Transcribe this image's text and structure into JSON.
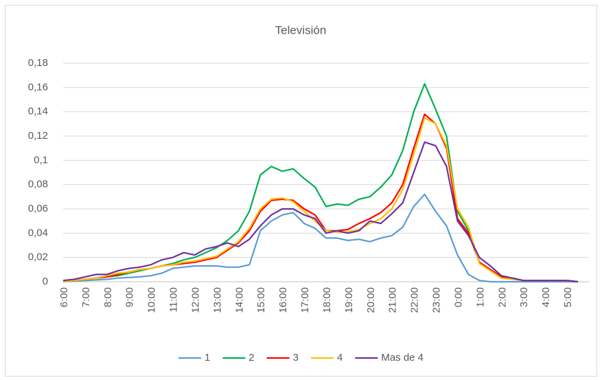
{
  "chart_data": {
    "type": "line",
    "title": "Televisión",
    "categories": [
      "6:00",
      null,
      "7:00",
      null,
      "8:00",
      null,
      "9:00",
      null,
      "10:00",
      null,
      "11:00",
      null,
      "12:00",
      null,
      "13:00",
      null,
      "14:00",
      null,
      "15:00",
      null,
      "16:00",
      null,
      "17:00",
      null,
      "18:00",
      null,
      "19:00",
      null,
      "20:00",
      null,
      "21:00",
      null,
      "22:00",
      null,
      "23:00",
      null,
      "0:00",
      null,
      "1:00",
      null,
      "2:00",
      null,
      "3:00",
      null,
      "4:00",
      null,
      "5:00",
      null
    ],
    "series": [
      {
        "name": "1",
        "color": "#5b9bd5",
        "values": [
          0,
          0.0005,
          0.001,
          0.0015,
          0.002,
          0.003,
          0.0035,
          0.004,
          0.005,
          0.007,
          0.011,
          0.012,
          0.013,
          0.013,
          0.013,
          0.012,
          0.012,
          0.014,
          0.042,
          0.05,
          0.055,
          0.057,
          0.048,
          0.044,
          0.036,
          0.036,
          0.034,
          0.035,
          0.033,
          0.036,
          0.038,
          0.045,
          0.062,
          0.072,
          0.058,
          0.046,
          0.022,
          0.006,
          0.001,
          0,
          0,
          0,
          0,
          0,
          0,
          0,
          0,
          0
        ]
      },
      {
        "name": "2",
        "color": "#00b050",
        "values": [
          0,
          0.001,
          0.002,
          0.003,
          0.004,
          0.005,
          0.007,
          0.009,
          0.011,
          0.013,
          0.015,
          0.018,
          0.02,
          0.024,
          0.028,
          0.034,
          0.042,
          0.058,
          0.088,
          0.095,
          0.091,
          0.093,
          0.085,
          0.078,
          0.062,
          0.064,
          0.063,
          0.068,
          0.07,
          0.078,
          0.088,
          0.108,
          0.14,
          0.163,
          0.142,
          0.12,
          0.058,
          0.042,
          0.016,
          0.01,
          0.004,
          0.003,
          0.001,
          0.001,
          0.001,
          0.001,
          0.001,
          0
        ]
      },
      {
        "name": "3",
        "color": "#ff0000",
        "values": [
          0,
          0.001,
          0.002,
          0.003,
          0.004,
          0.006,
          0.008,
          0.01,
          0.011,
          0.013,
          0.014,
          0.015,
          0.016,
          0.018,
          0.02,
          0.026,
          0.032,
          0.042,
          0.058,
          0.067,
          0.068,
          0.067,
          0.06,
          0.055,
          0.042,
          0.042,
          0.043,
          0.048,
          0.052,
          0.057,
          0.065,
          0.08,
          0.11,
          0.138,
          0.13,
          0.11,
          0.052,
          0.04,
          0.016,
          0.01,
          0.004,
          0.003,
          0.001,
          0.001,
          0.001,
          0.001,
          0.001,
          0
        ]
      },
      {
        "name": "4",
        "color": "#ffc000",
        "values": [
          0,
          0.001,
          0.002,
          0.003,
          0.005,
          0.007,
          0.008,
          0.01,
          0.011,
          0.013,
          0.014,
          0.016,
          0.017,
          0.019,
          0.021,
          0.027,
          0.033,
          0.044,
          0.06,
          0.068,
          0.069,
          0.066,
          0.058,
          0.05,
          0.042,
          0.041,
          0.041,
          0.043,
          0.048,
          0.052,
          0.06,
          0.076,
          0.105,
          0.135,
          0.13,
          0.112,
          0.06,
          0.045,
          0.015,
          0.009,
          0.003,
          0.002,
          0.001,
          0.001,
          0.001,
          0.001,
          0.001,
          0
        ]
      },
      {
        "name": "Mas de 4",
        "color": "#7030a0",
        "values": [
          0.001,
          0.002,
          0.004,
          0.006,
          0.006,
          0.009,
          0.011,
          0.012,
          0.014,
          0.018,
          0.02,
          0.024,
          0.022,
          0.027,
          0.029,
          0.032,
          0.029,
          0.035,
          0.046,
          0.055,
          0.06,
          0.06,
          0.055,
          0.052,
          0.04,
          0.042,
          0.04,
          0.042,
          0.05,
          0.048,
          0.056,
          0.065,
          0.09,
          0.115,
          0.112,
          0.095,
          0.05,
          0.038,
          0.02,
          0.013,
          0.005,
          0.003,
          0.001,
          0.001,
          0.001,
          0.001,
          0.001,
          0
        ]
      }
    ],
    "ylim": [
      0,
      0.18
    ],
    "yticks": [
      0,
      {
        "value": 0.02,
        "label": "0,02"
      },
      {
        "value": 0.04,
        "label": "0,04"
      },
      {
        "value": 0.06,
        "label": "0,06"
      },
      {
        "value": 0.08,
        "label": "0,08"
      },
      {
        "value": 0.1,
        "label": "0,1"
      },
      {
        "value": 0.12,
        "label": "0,12"
      },
      {
        "value": 0.14,
        "label": "0,14"
      },
      {
        "value": 0.16,
        "label": "0,16"
      },
      {
        "value": 0.18,
        "label": "0,18"
      }
    ],
    "grid": true,
    "legend": "bottom"
  }
}
